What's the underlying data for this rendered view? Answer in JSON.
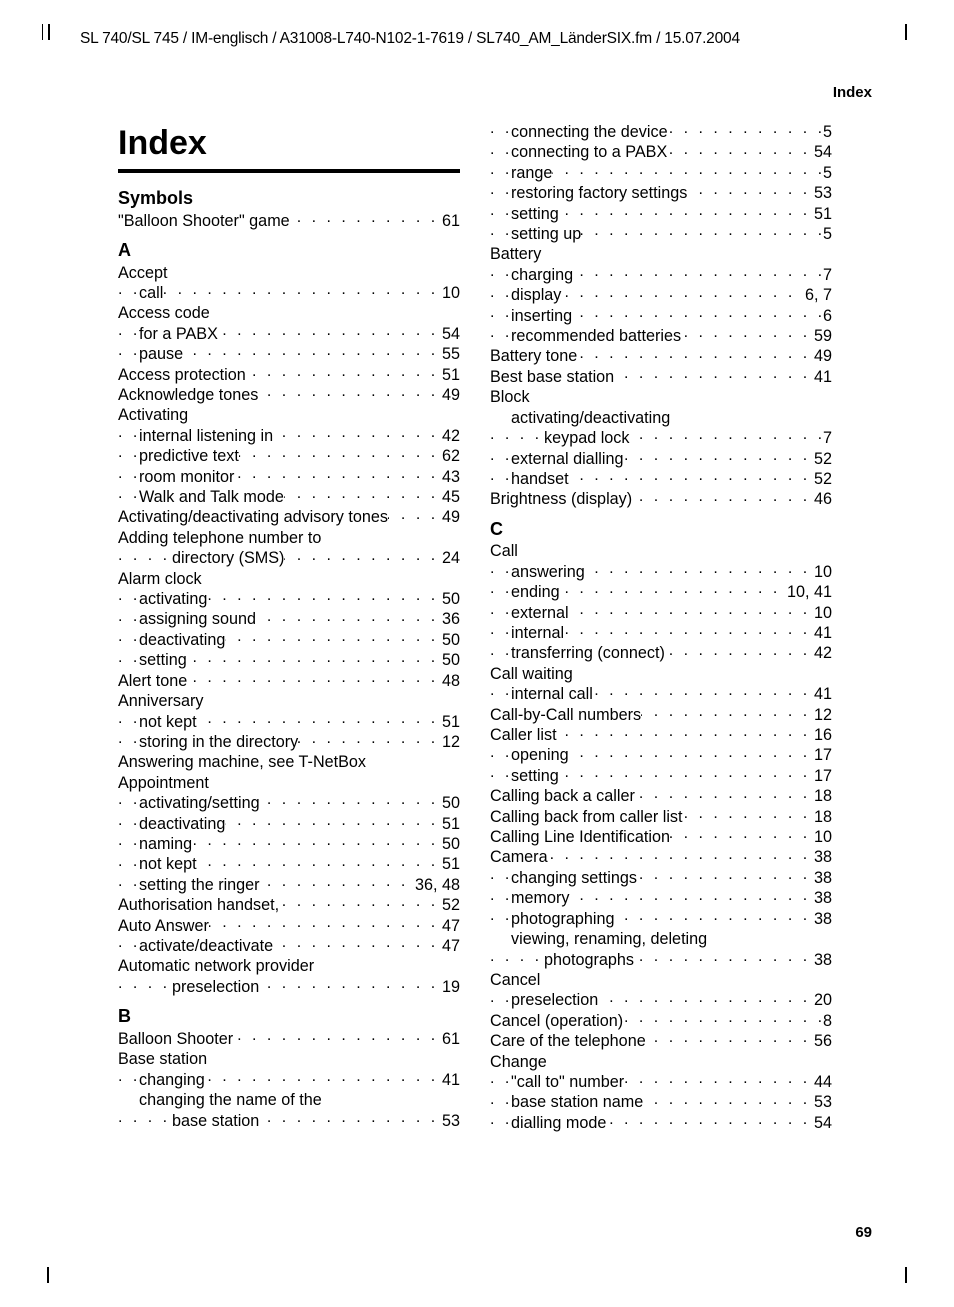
{
  "header": "SL 740/SL 745 / IM-englisch / A31008-L740-N102-1-7619 / SL740_AM_LänderSIX.fm / 15.07.2004",
  "running_head": "Index",
  "title": "Index",
  "page_number": "69",
  "left_column": [
    {
      "type": "head",
      "text": "Symbols"
    },
    {
      "lvl": 1,
      "label": "\"Balloon Shooter\" game",
      "page": "61"
    },
    {
      "type": "head",
      "text": "A"
    },
    {
      "lvl": 1,
      "label": "Accept",
      "no_page": true
    },
    {
      "lvl": 2,
      "label": "call",
      "page": "10"
    },
    {
      "lvl": 1,
      "label": "Access code",
      "no_page": true
    },
    {
      "lvl": 2,
      "label": "for a PABX",
      "page": "54"
    },
    {
      "lvl": 2,
      "label": "pause",
      "page": "55"
    },
    {
      "lvl": 1,
      "label": "Access protection",
      "page": "51"
    },
    {
      "lvl": 1,
      "label": "Acknowledge tones",
      "page": "49"
    },
    {
      "lvl": 1,
      "label": "Activating",
      "no_page": true
    },
    {
      "lvl": 2,
      "label": "internal listening in",
      "page": "42"
    },
    {
      "lvl": 2,
      "label": "predictive text",
      "page": "62"
    },
    {
      "lvl": 2,
      "label": "room monitor",
      "page": "43"
    },
    {
      "lvl": 2,
      "label": "Walk and Talk mode",
      "page": "45"
    },
    {
      "lvl": 1,
      "label": "Activating/deactivating advisory tones",
      "page": "49"
    },
    {
      "lvl": 1,
      "label": "Adding telephone number to",
      "no_page": true
    },
    {
      "lvl": 3,
      "label": "directory (SMS)",
      "page": "24"
    },
    {
      "lvl": 1,
      "label": "Alarm clock",
      "no_page": true
    },
    {
      "lvl": 2,
      "label": "activating",
      "page": "50"
    },
    {
      "lvl": 2,
      "label": "assigning sound",
      "page": "36"
    },
    {
      "lvl": 2,
      "label": "deactivating",
      "page": "50"
    },
    {
      "lvl": 2,
      "label": "setting",
      "page": "50"
    },
    {
      "lvl": 1,
      "label": "Alert tone",
      "page": "48"
    },
    {
      "lvl": 1,
      "label": "Anniversary",
      "no_page": true
    },
    {
      "lvl": 2,
      "label": "not kept",
      "page": "51"
    },
    {
      "lvl": 2,
      "label": "storing in the directory",
      "page": "12"
    },
    {
      "lvl": 1,
      "label": "Answering machine, see T-NetBox",
      "no_page": true
    },
    {
      "lvl": 1,
      "label": "Appointment",
      "no_page": true
    },
    {
      "lvl": 2,
      "label": "activating/setting",
      "page": "50"
    },
    {
      "lvl": 2,
      "label": "deactivating",
      "page": "51"
    },
    {
      "lvl": 2,
      "label": "naming",
      "page": "50"
    },
    {
      "lvl": 2,
      "label": "not kept",
      "page": "51"
    },
    {
      "lvl": 2,
      "label": "setting the ringer",
      "page": "36, 48"
    },
    {
      "lvl": 1,
      "label": "Authorisation handset,",
      "page": "52"
    },
    {
      "lvl": 1,
      "label": "Auto Answer",
      "page": "47"
    },
    {
      "lvl": 2,
      "label": "activate/deactivate",
      "page": "47"
    },
    {
      "lvl": 1,
      "label": "Automatic network provider",
      "no_page": true
    },
    {
      "lvl": 3,
      "label": "preselection",
      "page": "19"
    },
    {
      "type": "head",
      "text": "B"
    },
    {
      "lvl": 1,
      "label": "Balloon Shooter",
      "page": "61"
    },
    {
      "lvl": 1,
      "label": "Base station",
      "no_page": true
    },
    {
      "lvl": 2,
      "label": "changing",
      "page": "41"
    },
    {
      "lvl": 2,
      "label": "changing the name of the",
      "no_page": true
    },
    {
      "lvl": 3,
      "label": "base station",
      "page": "53"
    }
  ],
  "right_column": [
    {
      "lvl": 2,
      "label": "connecting the device",
      "page": "5"
    },
    {
      "lvl": 2,
      "label": "connecting to a PABX",
      "page": "54"
    },
    {
      "lvl": 2,
      "label": "range",
      "page": "5"
    },
    {
      "lvl": 2,
      "label": "restoring factory settings",
      "page": "53"
    },
    {
      "lvl": 2,
      "label": "setting",
      "page": "51"
    },
    {
      "lvl": 2,
      "label": "setting up",
      "page": "5"
    },
    {
      "lvl": 1,
      "label": "Battery",
      "no_page": true
    },
    {
      "lvl": 2,
      "label": "charging",
      "page": "7"
    },
    {
      "lvl": 2,
      "label": "display",
      "page": "6, 7"
    },
    {
      "lvl": 2,
      "label": "inserting",
      "page": "6"
    },
    {
      "lvl": 2,
      "label": "recommended batteries",
      "page": "59"
    },
    {
      "lvl": 1,
      "label": "Battery tone",
      "page": "49"
    },
    {
      "lvl": 1,
      "label": "Best base station",
      "page": "41"
    },
    {
      "lvl": 1,
      "label": "Block",
      "no_page": true
    },
    {
      "lvl": 2,
      "label": "activating/deactivating",
      "no_page": true
    },
    {
      "lvl": 3,
      "label": "keypad lock",
      "page": "7"
    },
    {
      "lvl": 2,
      "label": "external dialling",
      "page": "52"
    },
    {
      "lvl": 2,
      "label": "handset",
      "page": "52"
    },
    {
      "lvl": 1,
      "label": "Brightness (display)",
      "page": "46"
    },
    {
      "type": "head",
      "text": "C"
    },
    {
      "lvl": 1,
      "label": "Call",
      "no_page": true
    },
    {
      "lvl": 2,
      "label": "answering",
      "page": "10"
    },
    {
      "lvl": 2,
      "label": "ending",
      "page": "10, 41"
    },
    {
      "lvl": 2,
      "label": "external",
      "page": "10"
    },
    {
      "lvl": 2,
      "label": "internal",
      "page": "41"
    },
    {
      "lvl": 2,
      "label": "transferring (connect)",
      "page": "42"
    },
    {
      "lvl": 1,
      "label": "Call waiting",
      "no_page": true
    },
    {
      "lvl": 2,
      "label": "internal call",
      "page": "41"
    },
    {
      "lvl": 1,
      "label": "Call-by-Call numbers",
      "page": "12"
    },
    {
      "lvl": 1,
      "label": "Caller list",
      "page": "16"
    },
    {
      "lvl": 2,
      "label": "opening",
      "page": "17"
    },
    {
      "lvl": 2,
      "label": "setting",
      "page": "17"
    },
    {
      "lvl": 1,
      "label": "Calling back a caller",
      "page": "18"
    },
    {
      "lvl": 1,
      "label": "Calling back from caller list",
      "page": "18"
    },
    {
      "lvl": 1,
      "label": "Calling Line Identification",
      "page": "10"
    },
    {
      "lvl": 1,
      "label": "Camera",
      "page": "38"
    },
    {
      "lvl": 2,
      "label": "changing settings",
      "page": "38"
    },
    {
      "lvl": 2,
      "label": "memory",
      "page": "38"
    },
    {
      "lvl": 2,
      "label": "photographing",
      "page": "38"
    },
    {
      "lvl": 2,
      "label": "viewing, renaming, deleting",
      "no_page": true
    },
    {
      "lvl": 3,
      "label": "photographs",
      "page": "38"
    },
    {
      "lvl": 1,
      "label": "Cancel",
      "no_page": true
    },
    {
      "lvl": 2,
      "label": "preselection",
      "page": "20"
    },
    {
      "lvl": 1,
      "label": "Cancel (operation)",
      "page": "8"
    },
    {
      "lvl": 1,
      "label": "Care of the telephone",
      "page": "56"
    },
    {
      "lvl": 1,
      "label": "Change",
      "no_page": true
    },
    {
      "lvl": 2,
      "label": "\"call to\" number",
      "page": "44"
    },
    {
      "lvl": 2,
      "label": "base station name",
      "page": "53"
    },
    {
      "lvl": 2,
      "label": "dialling mode",
      "page": "54"
    }
  ]
}
